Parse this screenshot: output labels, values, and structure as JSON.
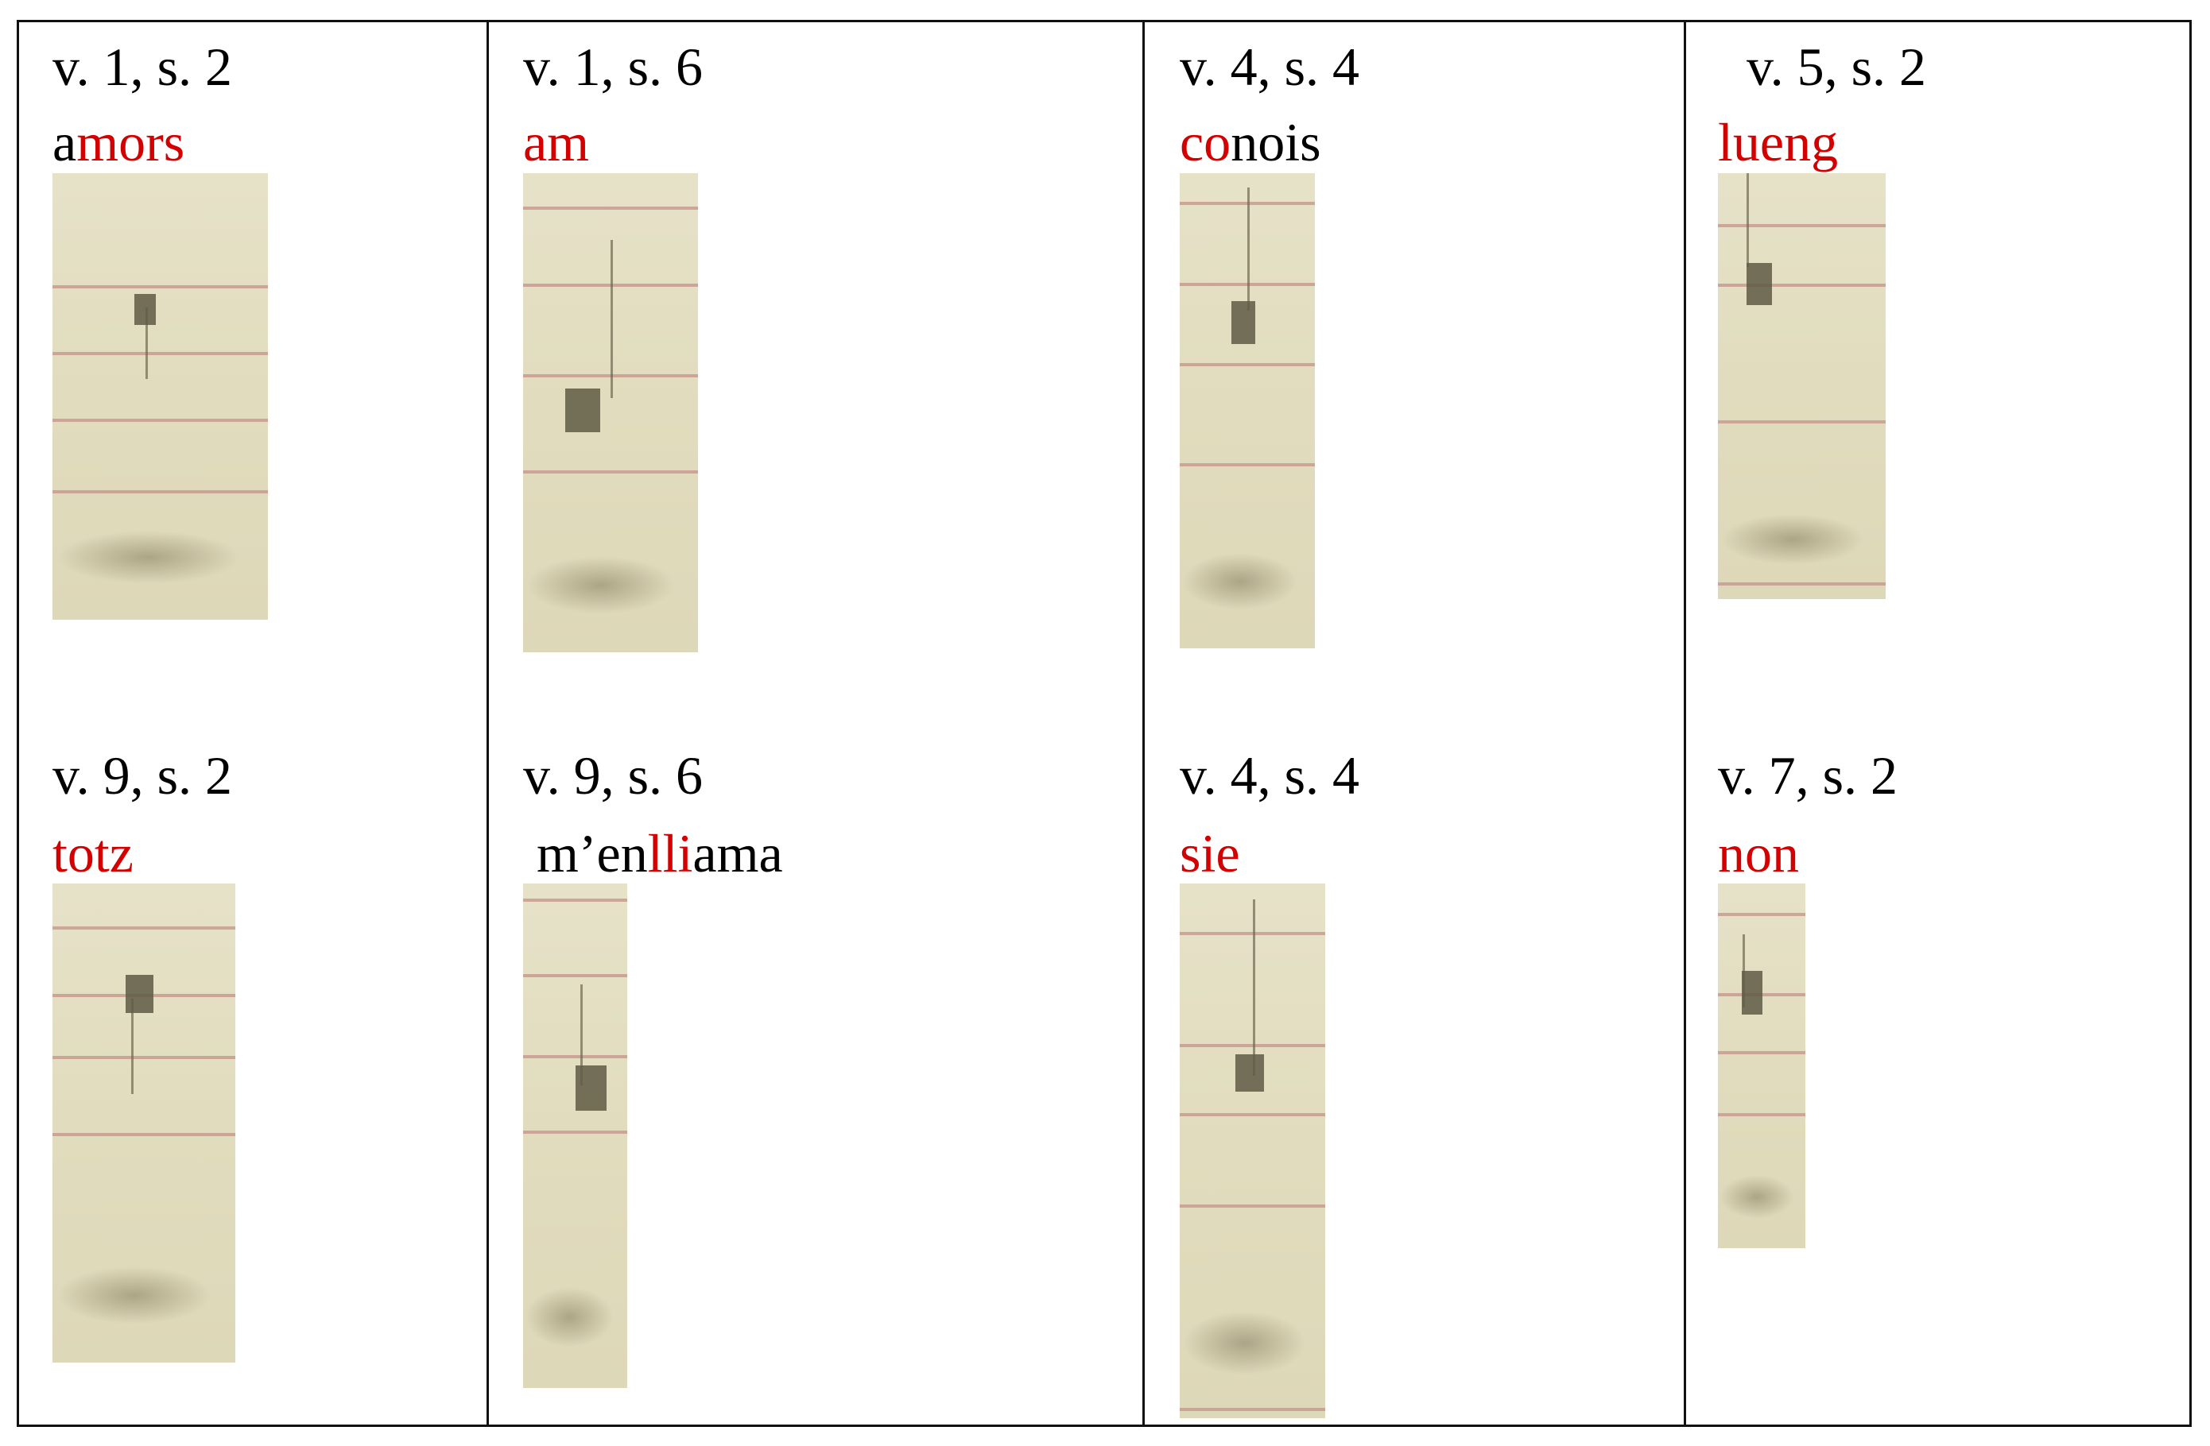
{
  "cells": [
    {
      "ref": "v. 1, s. 2",
      "word": [
        {
          "t": "a",
          "c": "black"
        },
        {
          "t": "mors",
          "c": "red"
        }
      ]
    },
    {
      "ref": "v. 1, s. 6",
      "word": [
        {
          "t": "am",
          "c": "red"
        }
      ]
    },
    {
      "ref": "v. 4, s. 4",
      "word": [
        {
          "t": "co",
          "c": "red"
        },
        {
          "t": "nois",
          "c": "black"
        }
      ]
    },
    {
      "ref": " v. 5, s. 2",
      "word": [
        {
          "t": "lueng",
          "c": "red"
        }
      ]
    },
    {
      "ref": "v. 9, s. 2",
      "word": [
        {
          "t": "totz",
          "c": "red"
        }
      ]
    },
    {
      "ref": "v. 9, s. 6",
      "word": [
        {
          "t": " m’en",
          "c": "black"
        },
        {
          "t": "lli",
          "c": "red"
        },
        {
          "t": "ama",
          "c": "black"
        }
      ]
    },
    {
      "ref": "v. 4, s. 4",
      "word": [
        {
          "t": "sie",
          "c": "red"
        }
      ]
    },
    {
      "ref": "v. 7, s. 2",
      "word": [
        {
          "t": "non",
          "c": "red"
        }
      ]
    }
  ],
  "colors": {
    "highlight": "#d40000",
    "text": "#000000",
    "parchment": "#e3dfc3",
    "staff_line": "#c99a90"
  }
}
